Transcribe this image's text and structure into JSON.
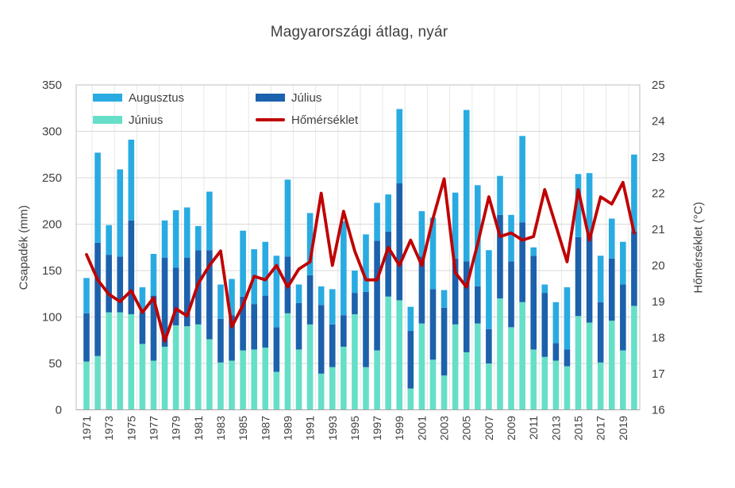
{
  "title": "Magyarországi átlag, nyár",
  "left_axis": {
    "title": "Csapadék (mm)",
    "ticks": [
      0,
      50,
      100,
      150,
      200,
      250,
      300,
      350
    ],
    "range": [
      0,
      350
    ]
  },
  "right_axis": {
    "title": "Hőmérséklet (°C)",
    "ticks": [
      16,
      17,
      18,
      19,
      20,
      21,
      22,
      23,
      24,
      25
    ],
    "range": [
      16,
      25
    ]
  },
  "legend": {
    "items": [
      {
        "label": "Augusztus",
        "swatch": "light-blue-bar"
      },
      {
        "label": "Július",
        "swatch": "dark-blue-bar"
      },
      {
        "label": "Június",
        "swatch": "mint-bar"
      },
      {
        "label": "Hőmérséklet",
        "swatch": "red-line"
      }
    ]
  },
  "colors": {
    "august": "#29ABE2",
    "july": "#1C61AC",
    "june": "#66DFC8",
    "temperature": "#C00000",
    "grid": "#D9D9D9",
    "grid_vertical": "#E8E8E8",
    "frame": "#BFBFBF",
    "axis_line": "#A6A6A6",
    "text": "#404040"
  },
  "chart_data": {
    "type": "bar",
    "subtype": "stacked-bars-with-line",
    "title": "Magyarországi átlag, nyár",
    "xlabel": "",
    "ylabel_left": "Csapadék (mm)",
    "ylabel_right": "Hőmérséklet (°C)",
    "ylim_left": [
      0,
      350
    ],
    "ylim_right": [
      16,
      25
    ],
    "grid": true,
    "legend_position": "top",
    "x": [
      1971,
      1972,
      1973,
      1974,
      1975,
      1976,
      1977,
      1978,
      1979,
      1980,
      1981,
      1982,
      1983,
      1984,
      1985,
      1986,
      1987,
      1988,
      1989,
      1990,
      1991,
      1992,
      1993,
      1994,
      1995,
      1996,
      1997,
      1998,
      1999,
      2000,
      2001,
      2002,
      2003,
      2004,
      2005,
      2006,
      2007,
      2008,
      2009,
      2010,
      2011,
      2012,
      2013,
      2014,
      2015,
      2016,
      2017,
      2018,
      2019,
      2020
    ],
    "x_tick_labels": [
      1971,
      1973,
      1975,
      1977,
      1979,
      1981,
      1983,
      1985,
      1987,
      1989,
      1991,
      1993,
      1995,
      1997,
      1999,
      2001,
      2003,
      2005,
      2007,
      2009,
      2011,
      2013,
      2015,
      2017,
      2019
    ],
    "series": [
      {
        "name": "Június",
        "type": "bar",
        "stack": "precip",
        "axis": "left",
        "values": [
          52,
          58,
          105,
          105,
          103,
          71,
          53,
          68,
          91,
          90,
          92,
          76,
          51,
          53,
          64,
          65,
          67,
          41,
          104,
          65,
          92,
          39,
          46,
          68,
          103,
          46,
          64,
          122,
          118,
          23,
          93,
          54,
          37,
          92,
          62,
          93,
          50,
          120,
          89,
          116,
          65,
          57,
          53,
          47,
          101,
          94,
          51,
          96,
          64,
          112
        ]
      },
      {
        "name": "Július",
        "type": "bar",
        "stack": "precip",
        "axis": "left",
        "values": [
          52,
          122,
          62,
          60,
          101,
          34,
          70,
          96,
          62,
          74,
          80,
          96,
          47,
          49,
          58,
          49,
          56,
          48,
          61,
          50,
          53,
          74,
          46,
          34,
          23,
          81,
          118,
          70,
          126,
          62,
          72,
          76,
          73,
          71,
          98,
          40,
          37,
          90,
          71,
          86,
          101,
          69,
          19,
          18,
          85,
          95,
          65,
          67,
          71,
          80
        ]
      },
      {
        "name": "Augusztus",
        "type": "bar",
        "stack": "precip",
        "axis": "left",
        "values": [
          38,
          97,
          32,
          94,
          87,
          27,
          45,
          40,
          62,
          54,
          26,
          63,
          37,
          39,
          71,
          59,
          58,
          77,
          83,
          20,
          67,
          20,
          38,
          101,
          24,
          62,
          41,
          40,
          80,
          26,
          49,
          77,
          19,
          71,
          163,
          109,
          85,
          42,
          50,
          93,
          9,
          9,
          44,
          67,
          68,
          66,
          50,
          43,
          46,
          83
        ]
      },
      {
        "name": "Hőmérséklet",
        "type": "line",
        "axis": "right",
        "values": [
          20.3,
          19.6,
          19.2,
          19.0,
          19.3,
          18.7,
          19.1,
          17.9,
          18.8,
          18.6,
          19.5,
          20.0,
          20.4,
          18.3,
          18.9,
          19.7,
          19.6,
          20.0,
          19.4,
          19.9,
          20.1,
          22.0,
          20.0,
          21.5,
          20.4,
          19.6,
          19.6,
          20.5,
          20.0,
          20.7,
          20.0,
          21.3,
          22.4,
          19.8,
          19.4,
          20.6,
          21.9,
          20.8,
          20.9,
          20.7,
          20.8,
          22.1,
          21.1,
          20.1,
          22.1,
          20.7,
          21.9,
          21.7,
          22.3,
          20.9
        ]
      }
    ]
  }
}
